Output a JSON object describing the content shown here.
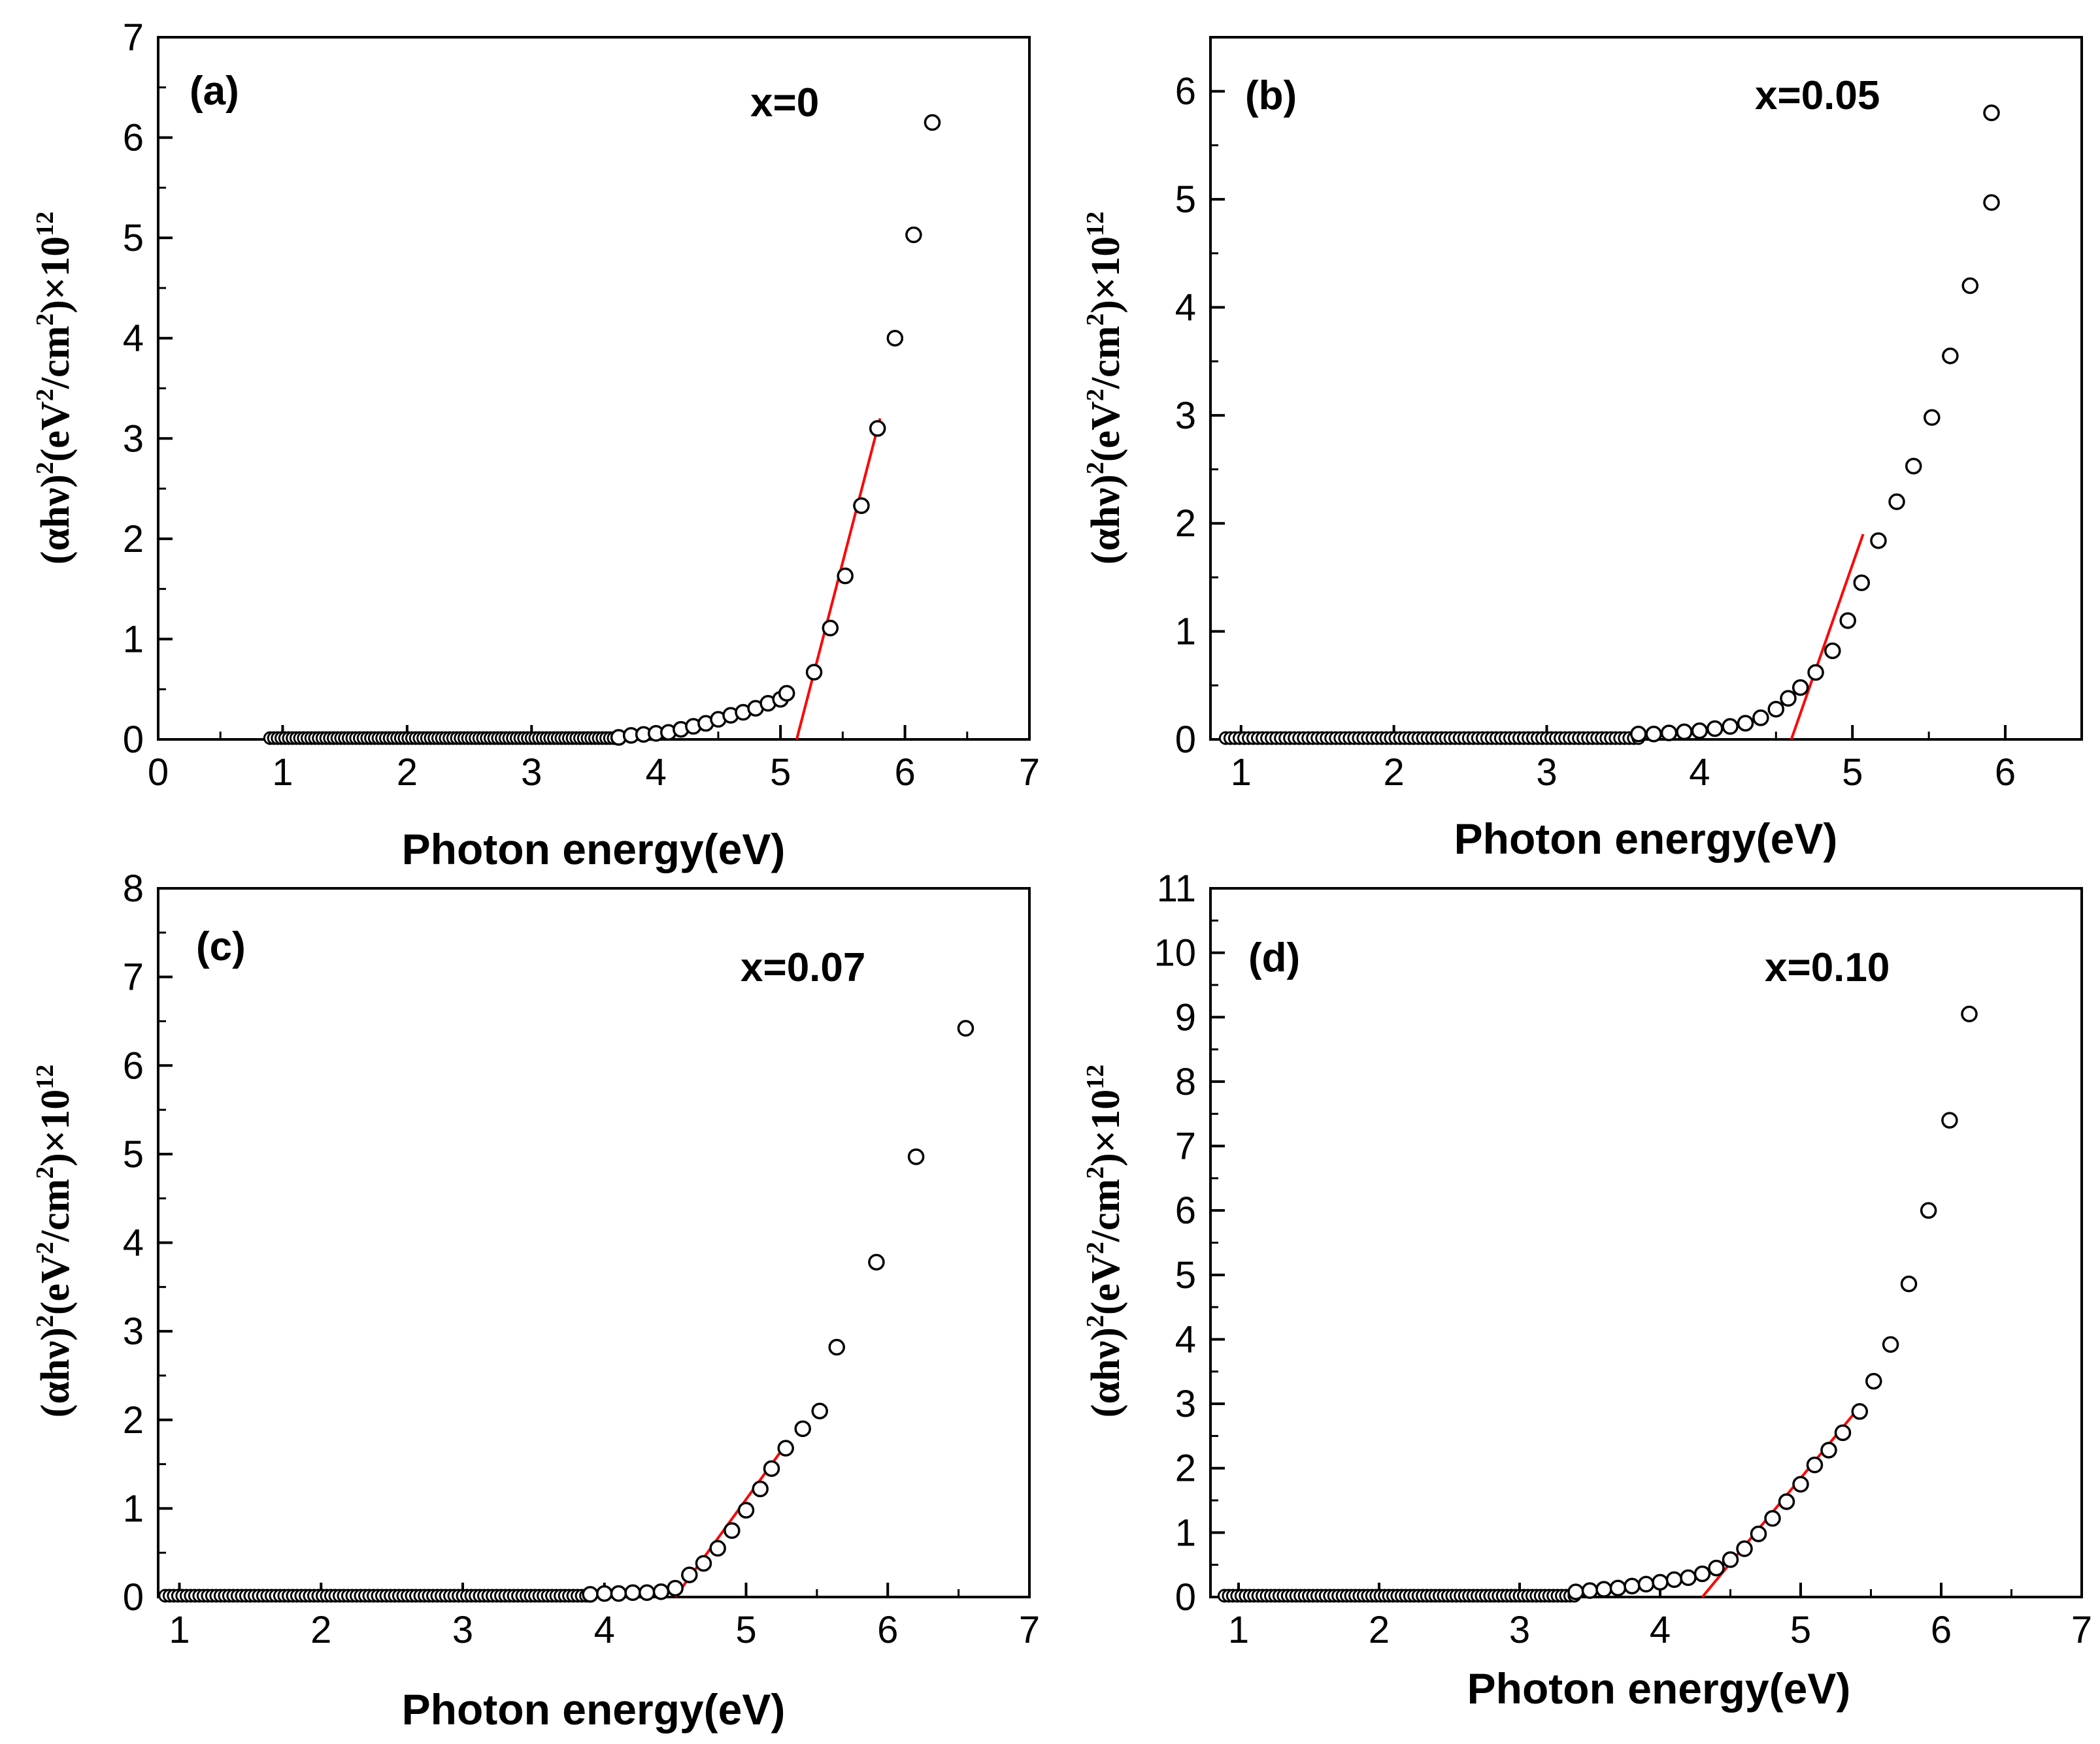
{
  "figure": {
    "panels": [
      {
        "panel_label": "(a)",
        "composition": "x=0",
        "xlabel": "Photon energy(eV)",
        "ylabel": {
          "prefix": "(αhν)",
          "sup1": "2",
          "mid1": "(eV",
          "sup2": "2",
          "mid2": "/cm",
          "sup3": "2",
          "mid3": ")×10",
          "sup4": "12"
        },
        "colors": {
          "markers": "#000000",
          "fit_line": "#ff0000",
          "axes": "#000000"
        }
      },
      {
        "panel_label": "(b)",
        "composition": "x=0.05",
        "xlabel": "Photon energy(eV)",
        "ylabel": {
          "prefix": "(αhν)",
          "sup1": "2",
          "mid1": "(eV",
          "sup2": "2",
          "mid2": "/cm",
          "sup3": "2",
          "mid3": ")×10",
          "sup4": "12"
        },
        "colors": {
          "markers": "#000000",
          "fit_line": "#ff0000",
          "axes": "#000000"
        }
      },
      {
        "panel_label": "(c)",
        "composition": "x=0.07",
        "xlabel": "Photon energy(eV)",
        "ylabel": {
          "prefix": "(αhν)",
          "sup1": "2",
          "mid1": "(eV",
          "sup2": "2",
          "mid2": "/cm",
          "sup3": "2",
          "mid3": ")×10",
          "sup4": "12"
        },
        "colors": {
          "markers": "#000000",
          "fit_line": "#ff0000",
          "axes": "#000000"
        }
      },
      {
        "panel_label": "(d)",
        "composition": "x=0.10",
        "xlabel": "Photon energy(eV)",
        "ylabel": {
          "prefix": "(αhν)",
          "sup1": "2",
          "mid1": "(eV",
          "sup2": "2",
          "mid2": "/cm",
          "sup3": "2",
          "mid3": ")×10",
          "sup4": "12"
        },
        "colors": {
          "markers": "#000000",
          "fit_line": "#ff0000",
          "axes": "#000000"
        }
      }
    ]
  },
  "chart_data": [
    {
      "type": "scatter",
      "title": "(a) x=0",
      "xlabel": "Photon energy(eV)",
      "ylabel": "(αhν)²(eV²/cm²)×10¹²",
      "xlim": [
        0,
        7
      ],
      "ylim": [
        0,
        7
      ],
      "xticks": [
        0,
        1,
        2,
        3,
        4,
        5,
        6,
        7
      ],
      "yticks": [
        0,
        1,
        2,
        3,
        4,
        5,
        6,
        7
      ],
      "series": [
        {
          "name": "data",
          "marker": "open-circle",
          "x": [
            3.7,
            3.8,
            3.9,
            4.0,
            4.1,
            4.2,
            4.3,
            4.4,
            4.5,
            4.6,
            4.7,
            4.8,
            4.9,
            5.0,
            5.05,
            5.27,
            5.4,
            5.52,
            5.65,
            5.78,
            5.92,
            6.07,
            6.22
          ],
          "y": [
            0.02,
            0.04,
            0.05,
            0.06,
            0.07,
            0.1,
            0.13,
            0.16,
            0.2,
            0.24,
            0.27,
            0.31,
            0.36,
            0.4,
            0.46,
            0.67,
            1.11,
            1.63,
            2.33,
            3.1,
            4.0,
            5.03,
            6.15
          ]
        },
        {
          "name": "linear fit",
          "style": "line",
          "x": [
            5.13,
            5.8
          ],
          "y": [
            0,
            3.2
          ]
        }
      ],
      "baseline_cluster": {
        "x_range": [
          0.9,
          3.7
        ],
        "y": 0
      }
    },
    {
      "type": "scatter",
      "title": "(b) x=0.05",
      "xlabel": "Photon energy(eV)",
      "ylabel": "(αhν)²(eV²/cm²)×10¹²",
      "xlim": [
        0.8,
        6.5
      ],
      "ylim": [
        0,
        6.5
      ],
      "xticks": [
        1,
        2,
        3,
        4,
        5,
        6
      ],
      "yticks": [
        0,
        1,
        2,
        3,
        4,
        5,
        6
      ],
      "series": [
        {
          "name": "data",
          "marker": "open-circle",
          "x": [
            3.6,
            3.7,
            3.8,
            3.9,
            4.0,
            4.1,
            4.2,
            4.3,
            4.4,
            4.5,
            4.58,
            4.66,
            4.76,
            4.87,
            4.97,
            5.06,
            5.17,
            5.29,
            5.4,
            5.52,
            5.64,
            5.77,
            5.91
          ],
          "y": [
            0.05,
            0.05,
            0.06,
            0.07,
            0.08,
            0.1,
            0.12,
            0.15,
            0.2,
            0.28,
            0.38,
            0.48,
            0.62,
            0.82,
            1.1,
            1.45,
            1.84,
            2.2,
            2.53,
            2.98,
            3.55,
            4.2,
            4.97
          ]
        },
        {
          "name": "data-top",
          "marker": "open-circle",
          "x": [
            5.91
          ],
          "y": [
            5.8
          ]
        },
        {
          "name": "linear fit",
          "style": "line",
          "x": [
            4.6,
            5.07
          ],
          "y": [
            0,
            1.9
          ]
        }
      ],
      "baseline_cluster": {
        "x_range": [
          0.9,
          3.6
        ],
        "y": 0
      }
    },
    {
      "type": "scatter",
      "title": "(c) x=0.07",
      "xlabel": "Photon energy(eV)",
      "ylabel": "(αhν)²(eV²/cm²)×10¹²",
      "xlim": [
        0.85,
        7
      ],
      "ylim": [
        0,
        8
      ],
      "xticks": [
        1,
        2,
        3,
        4,
        5,
        6,
        7
      ],
      "yticks": [
        0,
        1,
        2,
        3,
        4,
        5,
        6,
        7,
        8
      ],
      "series": [
        {
          "name": "data",
          "marker": "open-circle",
          "x": [
            3.9,
            4.0,
            4.1,
            4.2,
            4.3,
            4.4,
            4.5,
            4.6,
            4.7,
            4.8,
            4.9,
            5.0,
            5.1,
            5.18,
            5.28,
            5.4,
            5.52,
            5.64,
            5.92,
            6.2,
            6.55
          ],
          "y": [
            0.03,
            0.04,
            0.04,
            0.05,
            0.05,
            0.06,
            0.1,
            0.25,
            0.38,
            0.55,
            0.75,
            0.98,
            1.22,
            1.45,
            1.68,
            1.9,
            2.1,
            2.82,
            3.78,
            4.97,
            6.42
          ]
        },
        {
          "name": "linear fit",
          "style": "line",
          "x": [
            4.5,
            5.28
          ],
          "y": [
            0,
            1.72
          ]
        }
      ],
      "baseline_cluster": {
        "x_range": [
          0.9,
          3.9
        ],
        "y": 0
      }
    },
    {
      "type": "scatter",
      "title": "(d) x=0.10",
      "xlabel": "Photon energy(eV)",
      "ylabel": "(αhν)²(eV²/cm²)×10¹²",
      "xlim": [
        0.8,
        7
      ],
      "ylim": [
        0,
        11
      ],
      "xticks": [
        1,
        2,
        3,
        4,
        5,
        6,
        7
      ],
      "yticks": [
        0,
        1,
        2,
        3,
        4,
        5,
        6,
        7,
        8,
        9,
        10,
        11
      ],
      "series": [
        {
          "name": "data",
          "marker": "open-circle",
          "x": [
            3.4,
            3.5,
            3.6,
            3.7,
            3.8,
            3.9,
            4.0,
            4.1,
            4.2,
            4.3,
            4.4,
            4.5,
            4.6,
            4.7,
            4.8,
            4.9,
            5.0,
            5.1,
            5.2,
            5.3,
            5.42,
            5.52,
            5.64,
            5.77,
            5.91,
            6.06,
            6.2
          ],
          "y": [
            0.08,
            0.1,
            0.12,
            0.14,
            0.17,
            0.2,
            0.23,
            0.27,
            0.3,
            0.36,
            0.45,
            0.58,
            0.75,
            0.98,
            1.22,
            1.48,
            1.75,
            2.05,
            2.28,
            2.55,
            2.88,
            3.35,
            3.92,
            4.86,
            6.0,
            7.4,
            9.05
          ]
        },
        {
          "name": "linear fit",
          "style": "line",
          "x": [
            4.3,
            5.4
          ],
          "y": [
            0,
            2.9
          ]
        }
      ],
      "baseline_cluster": {
        "x_range": [
          0.9,
          3.4
        ],
        "y": 0
      }
    }
  ]
}
